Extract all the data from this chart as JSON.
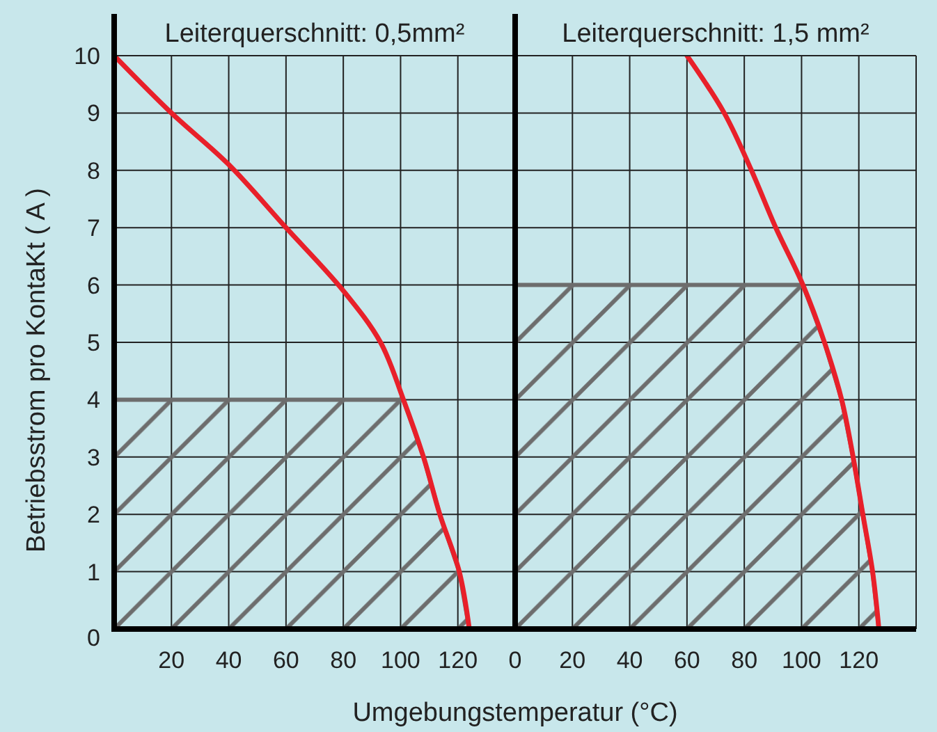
{
  "chart_data": [
    {
      "type": "line",
      "title": "Leiterquerschnitt: 0,5mm²",
      "xlabel": "Umgebungstemperatur (°C)",
      "ylabel": "Betriebsstrom  pro  KontaKt ( A )",
      "xlim": [
        0,
        140
      ],
      "ylim": [
        0,
        10
      ],
      "xticks": [
        20,
        40,
        60,
        80,
        100,
        120
      ],
      "yticks": [
        0,
        1,
        2,
        3,
        4,
        5,
        6,
        7,
        8,
        9,
        10
      ],
      "grid": true,
      "series": [
        {
          "type": "area",
          "color": "#6d6d6d",
          "x": [
            0,
            101,
            108,
            113.7,
            120.5,
            124
          ],
          "values": [
            4,
            4,
            3,
            2,
            1,
            0
          ]
        },
        {
          "type": "line",
          "color": "#e8202a",
          "x": [
            0,
            20,
            40,
            60,
            80,
            93,
            101,
            108,
            113.7,
            120.5,
            124
          ],
          "values": [
            10,
            9.0,
            8.1,
            7.0,
            5.9,
            5,
            4,
            3,
            2,
            1,
            0
          ]
        }
      ]
    },
    {
      "type": "line",
      "title": "Leiterquerschnitt: 1,5 mm²",
      "xlim": [
        0,
        140
      ],
      "ylim": [
        0,
        10
      ],
      "tick_labels": "x",
      "xticks": [
        0,
        20,
        40,
        60,
        80,
        100,
        120
      ],
      "yticks": [
        0,
        1,
        2,
        3,
        4,
        5,
        6,
        7,
        8,
        9,
        10
      ],
      "grid": true,
      "series": [
        {
          "type": "area",
          "color": "#6d6d6d",
          "x": [
            0,
            100.5,
            108,
            114,
            118,
            121.4,
            124.8,
            127
          ],
          "values": [
            6,
            6,
            5,
            4,
            3,
            2,
            1,
            0
          ]
        },
        {
          "type": "line",
          "color": "#e8202a",
          "x": [
            60,
            73,
            82.5,
            91,
            100.5,
            108,
            114,
            118,
            121.4,
            124.8,
            127
          ],
          "values": [
            10,
            9,
            8,
            7,
            6,
            5,
            4,
            3,
            2,
            1,
            0
          ]
        }
      ]
    }
  ]
}
